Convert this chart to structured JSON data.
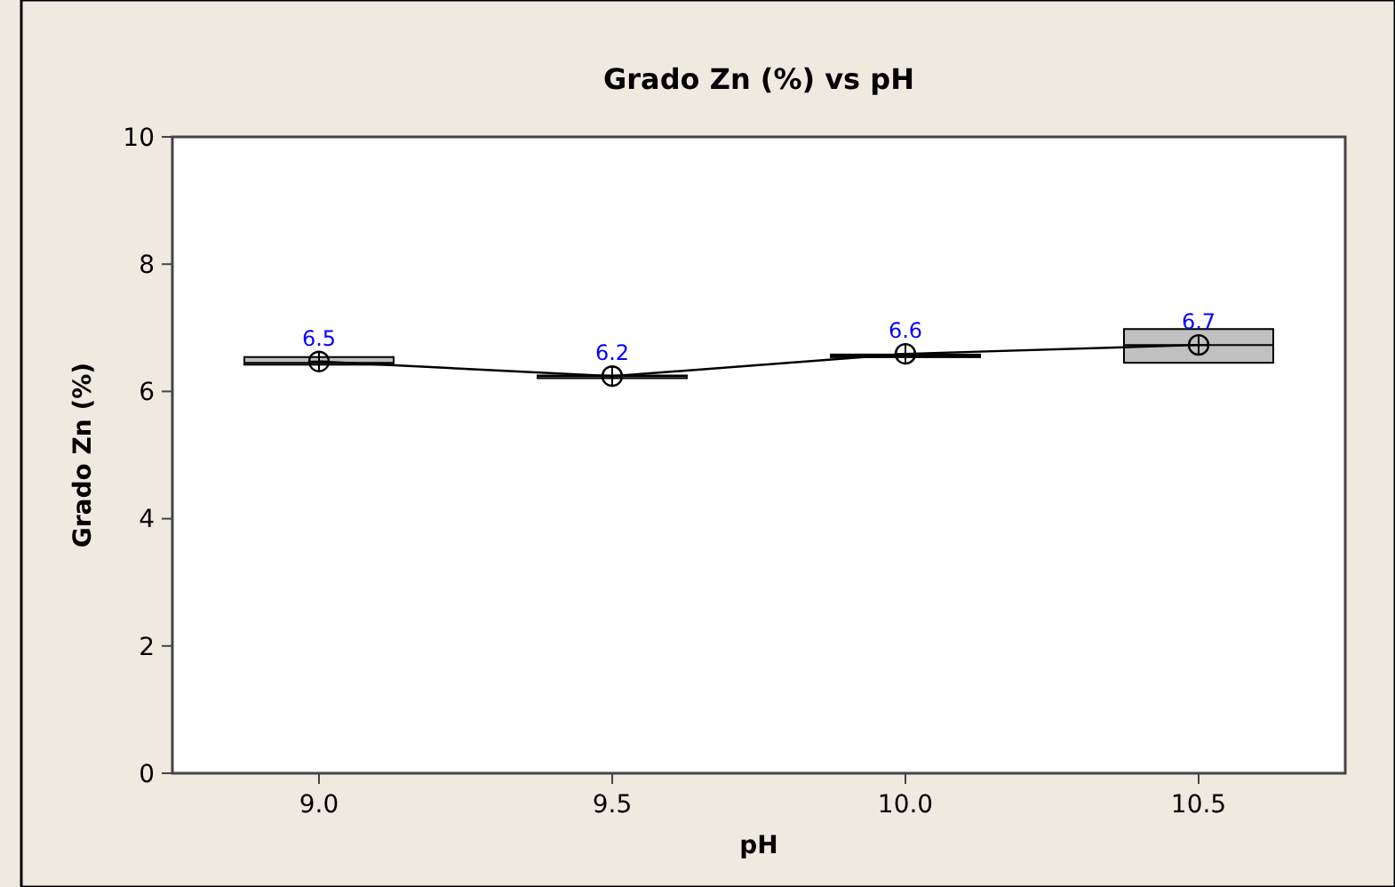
{
  "chart_data": {
    "type": "box",
    "title": "Grado Zn (%) vs pH",
    "xlabel": "pH",
    "ylabel": "Grado Zn (%)",
    "categories": [
      "9.0",
      "9.5",
      "10.0",
      "10.5"
    ],
    "boxes": [
      {
        "q1": 6.42,
        "median": 6.45,
        "q3": 6.54,
        "mean": 6.47
      },
      {
        "q1": 6.23,
        "median": 6.24,
        "q3": 6.25,
        "mean": 6.24
      },
      {
        "q1": 6.54,
        "median": 6.56,
        "q3": 6.58,
        "mean": 6.59
      },
      {
        "q1": 6.45,
        "median": 6.73,
        "q3": 6.98,
        "mean": 6.73
      }
    ],
    "color": "#c0c0c0",
    "series": [
      {
        "type": "line",
        "color": "#000000",
        "x": [
          "9.0",
          "9.5",
          "10.0",
          "10.5"
        ],
        "values": [
          6.47,
          6.24,
          6.59,
          6.73
        ],
        "value_labels": [
          "6.5",
          "6.2",
          "6.6",
          "6.7"
        ]
      }
    ],
    "ylim": [
      0,
      10
    ],
    "yticks": [
      0,
      2,
      4,
      6,
      8,
      10
    ],
    "grid": false
  }
}
